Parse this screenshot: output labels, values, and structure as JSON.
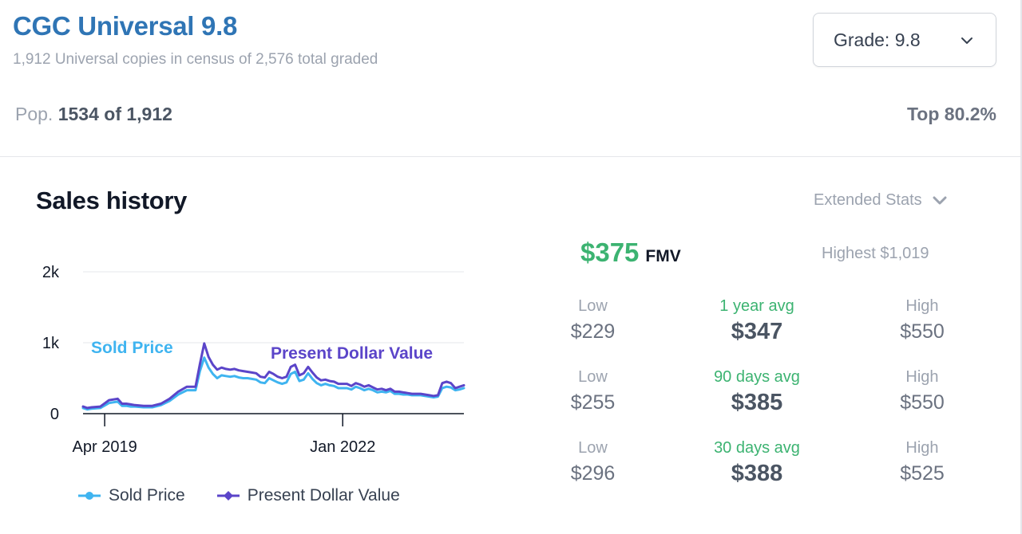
{
  "census": {
    "title": "CGC Universal 9.8",
    "subtitle": "1,912 Universal copies in census of 2,576 total graded",
    "pop_label": "Pop.",
    "pop_value": "1534 of 1,912",
    "top_percent": "Top 80.2%"
  },
  "grade_select": {
    "label": "Grade: 9.8"
  },
  "sales": {
    "title": "Sales history",
    "extended_stats_label": "Extended Stats"
  },
  "fmv": {
    "value": "$375",
    "label": "FMV",
    "highest": "Highest $1,019"
  },
  "stats": [
    {
      "low_label": "Low",
      "low_value": "$229",
      "avg_label": "1 year avg",
      "avg_value": "$347",
      "high_label": "High",
      "high_value": "$550"
    },
    {
      "low_label": "Low",
      "low_value": "$255",
      "avg_label": "90 days avg",
      "avg_value": "$385",
      "high_label": "High",
      "high_value": "$550"
    },
    {
      "low_label": "Low",
      "low_value": "$296",
      "avg_label": "30 days avg",
      "avg_value": "$388",
      "high_label": "High",
      "high_value": "$525"
    }
  ],
  "colors": {
    "sold_price": "#3fb4f0",
    "present_dollar_value": "#5b45c9",
    "fmv_green": "#3cb371",
    "title_blue": "#2f75b5"
  },
  "icons": [
    "chevron-down-icon"
  ],
  "chart_data": {
    "type": "line",
    "x_ticks": [
      "Apr 2019",
      "Jan 2022"
    ],
    "x_tick_positions": [
      2019.25,
      2022.0
    ],
    "x_range": [
      2019.0,
      2023.4
    ],
    "y_ticks": [
      "0",
      "1k",
      "2k"
    ],
    "y_tick_values": [
      0,
      1000,
      2000
    ],
    "ylim": [
      0,
      2000
    ],
    "grid": true,
    "legend_position": "bottom",
    "inline_labels": {
      "sold": "Sold Price",
      "present": "Present Dollar Value"
    },
    "series": [
      {
        "name": "Sold Price",
        "x": [
          2019.0,
          2019.05,
          2019.1,
          2019.2,
          2019.3,
          2019.4,
          2019.45,
          2019.5,
          2019.55,
          2019.6,
          2019.7,
          2019.8,
          2019.9,
          2020.0,
          2020.1,
          2020.2,
          2020.3,
          2020.35,
          2020.4,
          2020.45,
          2020.5,
          2020.55,
          2020.6,
          2020.65,
          2020.7,
          2020.75,
          2020.8,
          2020.85,
          2020.9,
          2020.95,
          2021.0,
          2021.05,
          2021.1,
          2021.15,
          2021.2,
          2021.25,
          2021.3,
          2021.35,
          2021.4,
          2021.45,
          2021.5,
          2021.55,
          2021.6,
          2021.65,
          2021.7,
          2021.75,
          2021.8,
          2021.85,
          2021.9,
          2021.95,
          2022.0,
          2022.05,
          2022.1,
          2022.15,
          2022.2,
          2022.25,
          2022.3,
          2022.35,
          2022.4,
          2022.45,
          2022.5,
          2022.55,
          2022.6,
          2022.65,
          2022.7,
          2022.75,
          2022.8,
          2022.85,
          2022.9,
          2022.95,
          2023.0,
          2023.05,
          2023.1,
          2023.15,
          2023.2,
          2023.25,
          2023.3,
          2023.35,
          2023.4
        ],
        "values": [
          80,
          60,
          70,
          80,
          150,
          170,
          110,
          110,
          100,
          100,
          90,
          90,
          120,
          180,
          270,
          330,
          330,
          600,
          790,
          650,
          560,
          500,
          540,
          530,
          520,
          530,
          510,
          500,
          500,
          490,
          480,
          440,
          430,
          500,
          470,
          440,
          420,
          440,
          560,
          590,
          460,
          480,
          570,
          490,
          430,
          400,
          420,
          400,
          390,
          360,
          360,
          360,
          340,
          380,
          360,
          330,
          350,
          330,
          300,
          310,
          300,
          320,
          280,
          280,
          270,
          270,
          260,
          260,
          260,
          250,
          240,
          230,
          240,
          360,
          380,
          370,
          330,
          340,
          360
        ]
      },
      {
        "name": "Present Dollar Value",
        "x": [
          2019.0,
          2019.05,
          2019.1,
          2019.2,
          2019.3,
          2019.4,
          2019.45,
          2019.5,
          2019.55,
          2019.6,
          2019.7,
          2019.8,
          2019.9,
          2020.0,
          2020.1,
          2020.2,
          2020.3,
          2020.35,
          2020.4,
          2020.45,
          2020.5,
          2020.55,
          2020.6,
          2020.65,
          2020.7,
          2020.75,
          2020.8,
          2020.85,
          2020.9,
          2020.95,
          2021.0,
          2021.05,
          2021.1,
          2021.15,
          2021.2,
          2021.25,
          2021.3,
          2021.35,
          2021.4,
          2021.45,
          2021.5,
          2021.55,
          2021.6,
          2021.65,
          2021.7,
          2021.75,
          2021.8,
          2021.85,
          2021.9,
          2021.95,
          2022.0,
          2022.05,
          2022.1,
          2022.15,
          2022.2,
          2022.25,
          2022.3,
          2022.35,
          2022.4,
          2022.45,
          2022.5,
          2022.55,
          2022.6,
          2022.65,
          2022.7,
          2022.75,
          2022.8,
          2022.85,
          2022.9,
          2022.95,
          2023.0,
          2023.05,
          2023.1,
          2023.15,
          2023.2,
          2023.25,
          2023.3,
          2023.35,
          2023.4
        ],
        "values": [
          100,
          80,
          90,
          100,
          190,
          210,
          140,
          140,
          130,
          120,
          110,
          110,
          140,
          210,
          310,
          380,
          380,
          700,
          990,
          800,
          690,
          620,
          650,
          630,
          620,
          630,
          610,
          600,
          590,
          580,
          570,
          520,
          510,
          590,
          560,
          520,
          500,
          520,
          660,
          690,
          540,
          570,
          660,
          580,
          510,
          470,
          480,
          460,
          450,
          420,
          420,
          420,
          390,
          430,
          410,
          380,
          400,
          370,
          340,
          350,
          330,
          350,
          310,
          310,
          300,
          290,
          280,
          280,
          280,
          270,
          260,
          250,
          260,
          430,
          450,
          430,
          360,
          380,
          400
        ]
      }
    ]
  }
}
